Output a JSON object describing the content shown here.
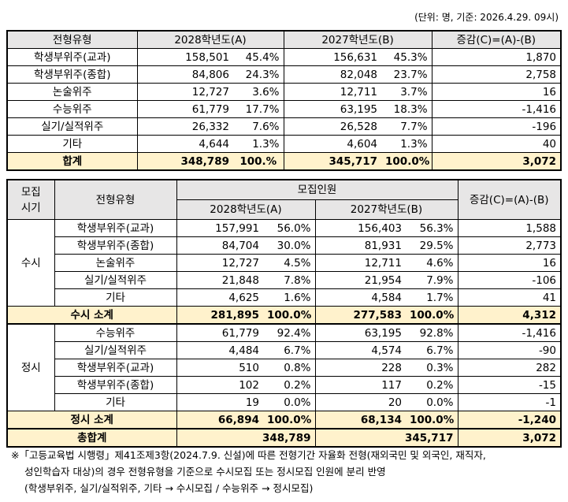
{
  "unit_note": "(단위: 명, 기준: 2026.4.29. 09시)",
  "table1": {
    "headers": {
      "type": "전형유형",
      "y2028": "2028학년도(A)",
      "y2027": "2027학년도(B)",
      "diff": "증감(C)=(A)-(B)"
    },
    "rows": [
      {
        "type": "학생부위주(교과)",
        "a": "158,501",
        "ap": "45.4%",
        "b": "156,631",
        "bp": "45.3%",
        "c": "1,870"
      },
      {
        "type": "학생부위주(종합)",
        "a": "84,806",
        "ap": "24.3%",
        "b": "82,048",
        "bp": "23.7%",
        "c": "2,758"
      },
      {
        "type": "논술위주",
        "a": "12,727",
        "ap": "3.6%",
        "b": "12,711",
        "bp": "3.7%",
        "c": "16"
      },
      {
        "type": "수능위주",
        "a": "61,779",
        "ap": "17.7%",
        "b": "63,195",
        "bp": "18.3%",
        "c": "-1,416"
      },
      {
        "type": "실기/실적위주",
        "a": "26,332",
        "ap": "7.6%",
        "b": "26,528",
        "bp": "7.7%",
        "c": "-196"
      },
      {
        "type": "기타",
        "a": "4,644",
        "ap": "1.3%",
        "b": "4,604",
        "bp": "1.3%",
        "c": "40"
      }
    ],
    "total": {
      "type": "합계",
      "a": "348,789",
      "ap": "100.%",
      "b": "345,717",
      "bp": "100.0%",
      "c": "3,072"
    }
  },
  "table2": {
    "headers": {
      "period": "모집\n시기",
      "type": "전형유형",
      "recruit": "모집인원",
      "y2028": "2028학년도(A)",
      "y2027": "2027학년도(B)",
      "diff": "증감(C)=(A)-(B)"
    },
    "susi": {
      "label": "수시",
      "rows": [
        {
          "type": "학생부위주(교과)",
          "a": "157,991",
          "ap": "56.0%",
          "b": "156,403",
          "bp": "56.3%",
          "c": "1,588"
        },
        {
          "type": "학생부위주(종합)",
          "a": "84,704",
          "ap": "30.0%",
          "b": "81,931",
          "bp": "29.5%",
          "c": "2,773"
        },
        {
          "type": "논술위주",
          "a": "12,727",
          "ap": "4.5%",
          "b": "12,711",
          "bp": "4.6%",
          "c": "16"
        },
        {
          "type": "실기/실적위주",
          "a": "21,848",
          "ap": "7.8%",
          "b": "21,954",
          "bp": "7.9%",
          "c": "-106"
        },
        {
          "type": "기타",
          "a": "4,625",
          "ap": "1.6%",
          "b": "4,584",
          "bp": "1.7%",
          "c": "41"
        }
      ],
      "subtotal": {
        "label": "수시 소계",
        "a": "281,895",
        "ap": "100.0%",
        "b": "277,583",
        "bp": "100.0%",
        "c": "4,312"
      }
    },
    "jeongsi": {
      "label": "정시",
      "rows": [
        {
          "type": "수능위주",
          "a": "61,779",
          "ap": "92.4%",
          "b": "63,195",
          "bp": "92.8%",
          "c": "-1,416"
        },
        {
          "type": "실기/실적위주",
          "a": "4,484",
          "ap": "6.7%",
          "b": "4,574",
          "bp": "6.7%",
          "c": "-90"
        },
        {
          "type": "학생부위주(교과)",
          "a": "510",
          "ap": "0.8%",
          "b": "228",
          "bp": "0.3%",
          "c": "282"
        },
        {
          "type": "학생부위주(종합)",
          "a": "102",
          "ap": "0.2%",
          "b": "117",
          "bp": "0.2%",
          "c": "-15"
        },
        {
          "type": "기타",
          "a": "19",
          "ap": "0.0%",
          "b": "20",
          "bp": "0.0%",
          "c": "-1"
        }
      ],
      "subtotal": {
        "label": "정시 소계",
        "a": "66,894",
        "ap": "100.0%",
        "b": "68,134",
        "bp": "100.0%",
        "c": "-1,240"
      }
    },
    "grand": {
      "label": "총합계",
      "a": "348,789",
      "b": "345,717",
      "c": "3,072"
    }
  },
  "notes": [
    "※「고등교육법 시행령」제41조제3항(2024.7.9. 신설)에 따른 전형기간 자율화 전형(재외국민 및 외국인, 재직자,",
    "성인학습자 대상)의 경우 전형유형을 기준으로 수시모집 또는 정시모집 인원에 분리 반영",
    "(학생부위주, 실기/실적위주, 기타 → 수시모집 / 수능위주 → 정시모집)"
  ]
}
